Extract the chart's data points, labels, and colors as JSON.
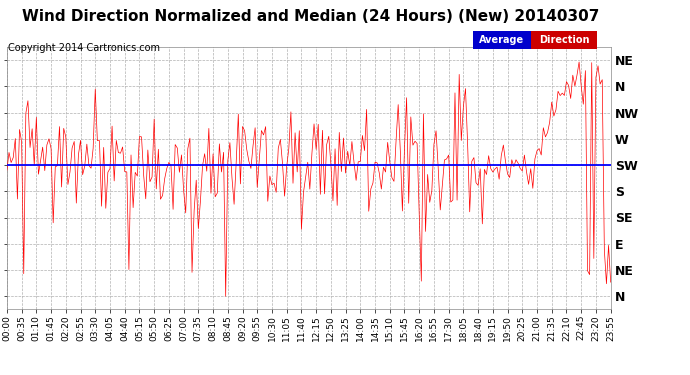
{
  "title": "Wind Direction Normalized and Median (24 Hours) (New) 20140307",
  "copyright": "Copyright 2014 Cartronics.com",
  "background_color": "#ffffff",
  "plot_bg_color": "#ffffff",
  "grid_color": "#b0b0b0",
  "ytick_labels": [
    "NE",
    "N",
    "NW",
    "W",
    "SW",
    "S",
    "SE",
    "E",
    "NE",
    "N"
  ],
  "ytick_values": [
    10,
    9,
    8,
    7,
    6,
    5,
    4,
    3,
    2,
    1
  ],
  "ylim": [
    0.5,
    10.5
  ],
  "legend_avg_label": "Average",
  "legend_dir_label": "Direction",
  "legend_avg_bg": "#0000cc",
  "legend_dir_bg": "#cc0000",
  "line_color_red": "#ff0000",
  "line_color_blue": "#0000ff",
  "title_fontsize": 11,
  "copyright_fontsize": 7,
  "tick_fontsize": 6.5,
  "ytick_fontsize": 9,
  "n_points": 288,
  "xtick_interval_min": 35
}
